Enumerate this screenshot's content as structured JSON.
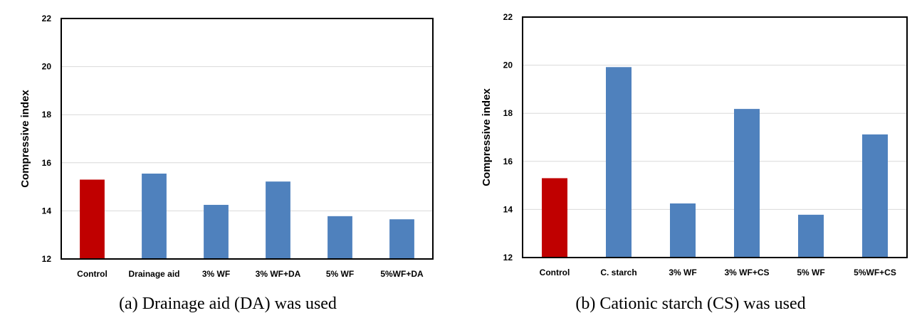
{
  "colors": {
    "control": "#c00000",
    "bars": "#4f81bd",
    "grid": "#d9d9d9",
    "frame": "#000000"
  },
  "chart_data": [
    {
      "type": "bar",
      "caption": "(a) Drainage aid (DA) was used",
      "ylabel": "Compressive index",
      "xlabel": "",
      "ylim": [
        12,
        22
      ],
      "yticks": [
        12,
        14,
        16,
        18,
        20,
        22
      ],
      "grid": true,
      "categories": [
        "Control",
        "Drainage aid",
        "3% WF",
        "3% WF+DA",
        "5% WF",
        "5%WF+DA"
      ],
      "values": [
        15.3,
        15.55,
        14.25,
        15.22,
        13.78,
        13.65
      ],
      "highlight_index": 0
    },
    {
      "type": "bar",
      "caption": "(b) Cationic starch (CS) was used",
      "ylabel": "Compressive index",
      "xlabel": "",
      "ylim": [
        12,
        22
      ],
      "yticks": [
        12,
        14,
        16,
        18,
        20,
        22
      ],
      "grid": true,
      "categories": [
        "Control",
        "C. starch",
        "3% WF",
        "3% WF+CS",
        "5% WF",
        "5%WF+CS"
      ],
      "values": [
        15.3,
        19.92,
        14.25,
        18.18,
        13.78,
        17.12
      ],
      "highlight_index": 0
    }
  ]
}
